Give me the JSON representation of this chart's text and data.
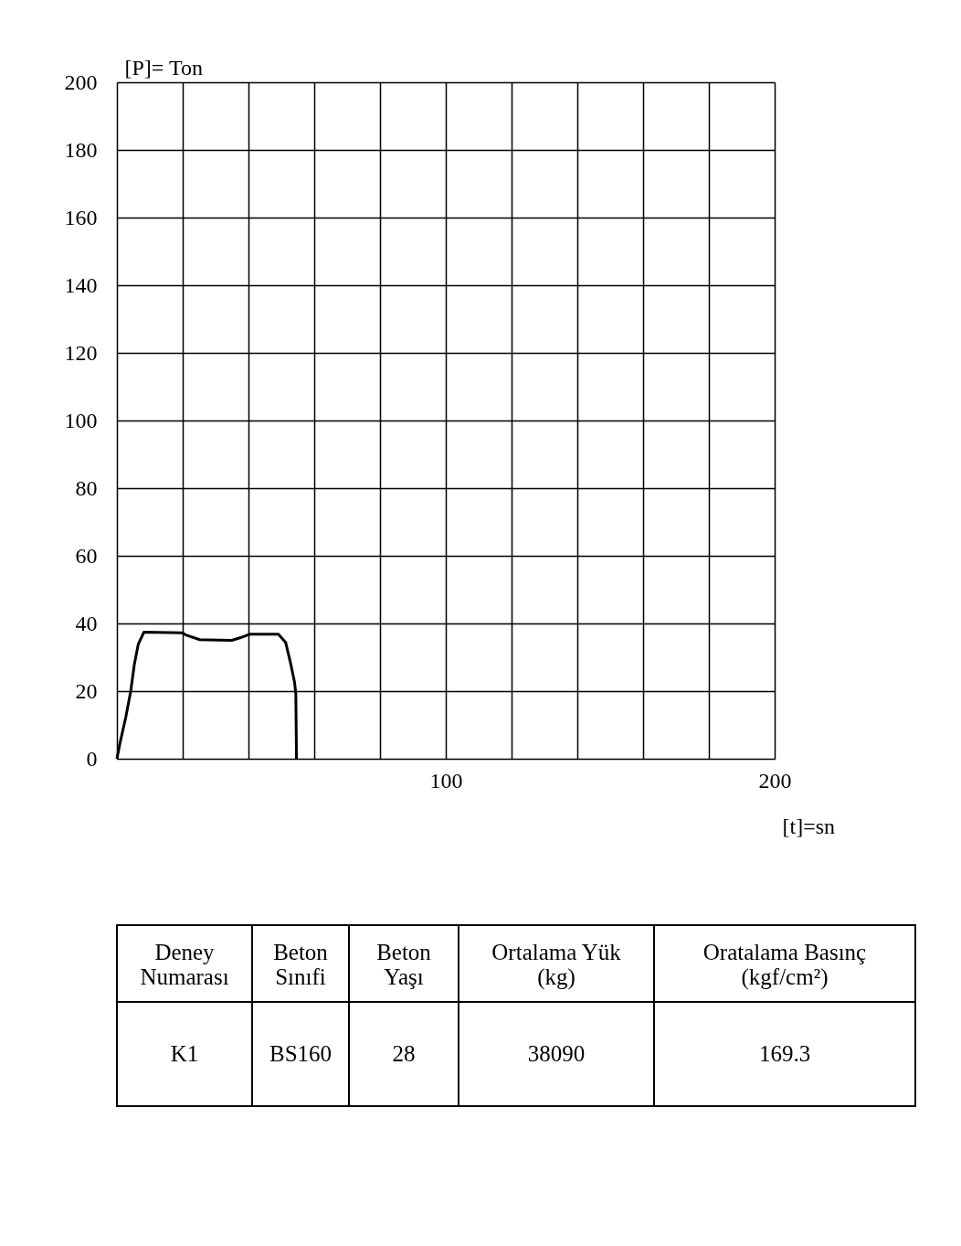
{
  "chart_data": {
    "type": "line",
    "ylabel": "[P]= Ton",
    "xlabel": "[t]=sn",
    "x": [
      0,
      0.9,
      2.7,
      4.2,
      5.3,
      6.5,
      8.2,
      19.9,
      21.2,
      25.2,
      34.9,
      37.6,
      40.3,
      49.1,
      51.3,
      52.7,
      54.0,
      54.4,
      54.6
    ],
    "series": [
      {
        "color": "#000000",
        "values": [
          0,
          4.5,
          12.3,
          20,
          27.9,
          33.9,
          37.4,
          37.2,
          36.5,
          35.2,
          35.0,
          35.8,
          36.8,
          36.8,
          34.4,
          28.7,
          22.7,
          19.2,
          0
        ]
      }
    ],
    "xlim": [
      0,
      200
    ],
    "ylim": [
      0,
      200
    ],
    "xticks": [
      {
        "value": 0,
        "label": null
      },
      {
        "value": 20,
        "label": null
      },
      {
        "value": 40,
        "label": null
      },
      {
        "value": 60,
        "label": null
      },
      {
        "value": 80,
        "label": null
      },
      100,
      {
        "value": 120,
        "label": null
      },
      {
        "value": 140,
        "label": null
      },
      {
        "value": 160,
        "label": null
      },
      {
        "value": 180,
        "label": null
      },
      200
    ],
    "yticks": [
      0,
      20,
      40,
      60,
      80,
      100,
      120,
      140,
      160,
      180,
      200
    ],
    "grid": true,
    "marker": "none",
    "line_style": "solid",
    "annotations": [
      "Deney Numarası",
      "Beton Sınıfi",
      "Beton Yaşı",
      "Ortalama Yük (kg)",
      "Oratalama Basınç (kgf/cm²)",
      "K1",
      "BS160",
      "28",
      "38090",
      "169.3"
    ]
  }
}
